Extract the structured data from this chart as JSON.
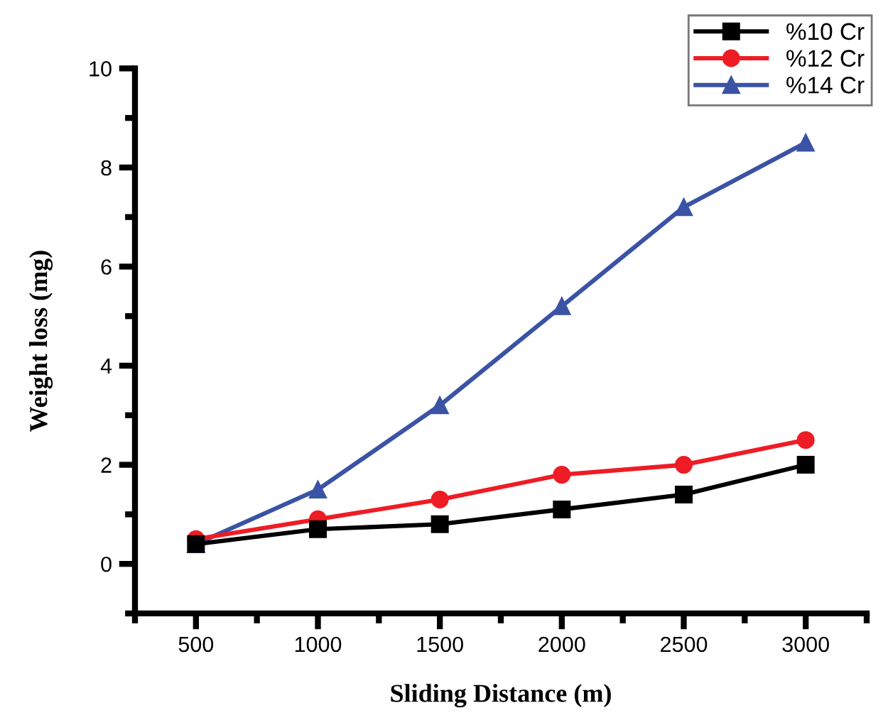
{
  "chart_data": {
    "type": "line",
    "xlabel": "Sliding Distance (m)",
    "ylabel": "Weight loss (mg)",
    "x": [
      500,
      1000,
      1500,
      2000,
      2500,
      3000
    ],
    "series": [
      {
        "name": "%10 Cr",
        "color": "#000000",
        "marker": "square",
        "values": [
          0.4,
          0.7,
          0.8,
          1.1,
          1.4,
          2.0
        ]
      },
      {
        "name": "%12 Cr",
        "color": "#ee1c25",
        "marker": "circle",
        "values": [
          0.5,
          0.9,
          1.3,
          1.8,
          2.0,
          2.5
        ]
      },
      {
        "name": "%14 Cr",
        "color": "#3a53a4",
        "marker": "triangle",
        "values": [
          0.4,
          1.5,
          3.2,
          5.2,
          7.2,
          8.5
        ]
      }
    ],
    "xlim": [
      250,
      3250
    ],
    "xticks": [
      500,
      1000,
      1500,
      2000,
      2500,
      3000
    ],
    "ylim": [
      -1,
      10
    ],
    "yticks": [
      0,
      2,
      4,
      6,
      8,
      10
    ],
    "grid": false,
    "legend": "top right",
    "line_style": "solid"
  }
}
